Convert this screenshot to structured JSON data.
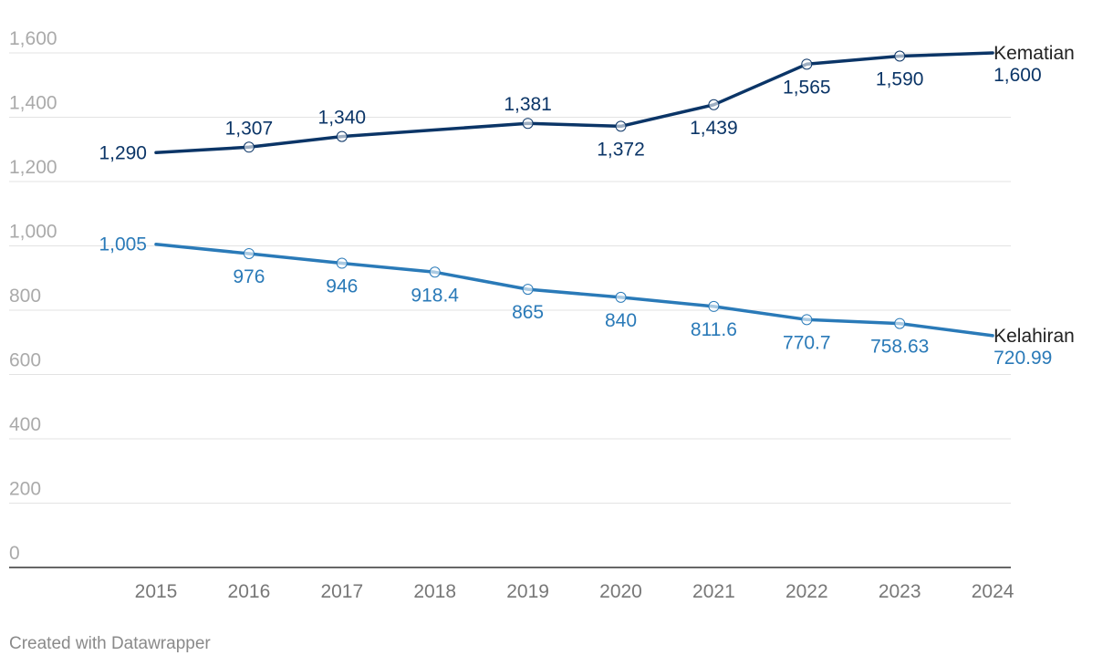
{
  "chart_data": {
    "type": "line",
    "title": "",
    "xlabel": "",
    "ylabel": "",
    "ylim": [
      0,
      1600
    ],
    "yticks": [
      "0",
      "200",
      "400",
      "600",
      "800",
      "1,000",
      "1,200",
      "1,400",
      "1,600"
    ],
    "ytick_values": [
      0,
      200,
      400,
      600,
      800,
      1000,
      1200,
      1400,
      1600
    ],
    "categories": [
      "2015",
      "2016",
      "2017",
      "2018",
      "2019",
      "2020",
      "2021",
      "2022",
      "2023",
      "2024"
    ],
    "series": [
      {
        "name": "Kematian",
        "color": "#0b3567",
        "values": [
          1290,
          1307,
          1340,
          null,
          1381,
          1372,
          1439,
          1565,
          1590,
          1600
        ],
        "labels": [
          "1,290",
          "1,307",
          "1,340",
          "",
          "1,381",
          "1,372",
          "1,439",
          "1,565",
          "1,590",
          "1,600"
        ]
      },
      {
        "name": "Kelahiran",
        "color": "#2a7ab8",
        "values": [
          1005,
          976,
          946,
          918.4,
          865,
          840,
          811.6,
          770.7,
          758.63,
          720.99
        ],
        "labels": [
          "1,005",
          "976",
          "946",
          "918.4",
          "865",
          "840",
          "811.6",
          "770.7",
          "758.63",
          "720.99"
        ]
      }
    ],
    "grid": true,
    "legend": "inline-right"
  },
  "footer": "Created with Datawrapper"
}
